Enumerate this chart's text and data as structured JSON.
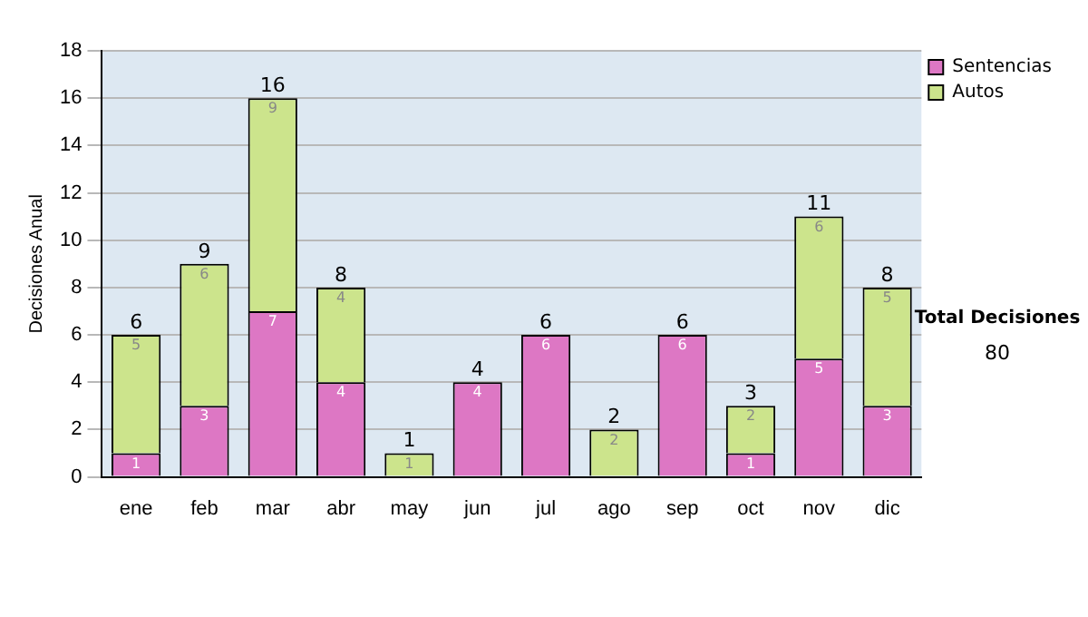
{
  "chart_data": {
    "type": "bar",
    "ylabel": "Decisiones Anual",
    "categories": [
      "ene",
      "feb",
      "mar",
      "abr",
      "may",
      "jun",
      "jul",
      "ago",
      "sep",
      "oct",
      "nov",
      "dic"
    ],
    "stacked": true,
    "ylim": [
      0,
      18
    ],
    "yticks": [
      0,
      2,
      4,
      6,
      8,
      10,
      12,
      14,
      16,
      18
    ],
    "grid": "y",
    "legend": "right",
    "series": [
      {
        "name": "Sentencias",
        "color": "#dd77c4",
        "values": [
          1,
          3,
          7,
          4,
          0,
          4,
          6,
          0,
          6,
          1,
          5,
          3
        ],
        "value_labels": [
          "1",
          "3",
          "7",
          "4",
          null,
          "4",
          "6",
          null,
          "6",
          "1",
          "5",
          "3"
        ]
      },
      {
        "name": "Autos",
        "color": "#cce48c",
        "values": [
          5,
          6,
          9,
          4,
          1,
          0,
          0,
          2,
          0,
          2,
          6,
          5
        ],
        "value_labels": [
          "5",
          "6",
          "9",
          "4",
          "1",
          null,
          null,
          "2",
          null,
          "2",
          "6",
          "5"
        ]
      }
    ],
    "totals": [
      "6",
      "9",
      "16",
      "8",
      "1",
      "4",
      "6",
      "2",
      "6",
      "3",
      "11",
      "8"
    ],
    "annotations": [
      "Total Decisiones",
      "80"
    ]
  }
}
